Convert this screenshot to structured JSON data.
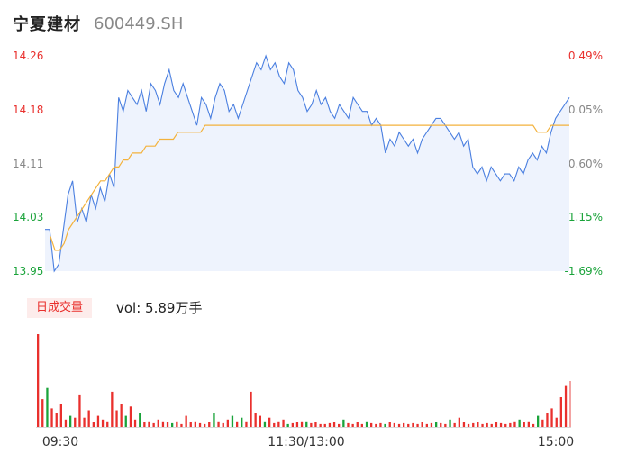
{
  "header": {
    "name": "宁夏建材",
    "code": "600449.SH"
  },
  "volume_panel": {
    "tag": "日成交量",
    "vol_text": "vol: 5.89万手"
  },
  "colors": {
    "up": "#e9302d",
    "down": "#1aa33a",
    "price_line": "#4a7fe0",
    "avg_line": "#f3b23c",
    "axis_text": "#888888"
  },
  "chart_data": [
    {
      "type": "line",
      "y_ticks": [
        "14.26",
        "14.18",
        "14.11",
        "14.03",
        "13.95"
      ],
      "y_ticks_right": [
        "0.49%",
        "-0.05%",
        "-0.60%",
        "-1.15%",
        "-1.69%"
      ],
      "ylim": [
        13.95,
        14.26
      ],
      "x_ticks": [
        "09:30",
        "11:30/13:00",
        "15:00"
      ],
      "series": [
        {
          "name": "price",
          "values": [
            14.01,
            14.01,
            13.95,
            13.96,
            14.01,
            14.06,
            14.08,
            14.02,
            14.04,
            14.02,
            14.06,
            14.04,
            14.07,
            14.05,
            14.09,
            14.07,
            14.2,
            14.18,
            14.21,
            14.2,
            14.19,
            14.21,
            14.18,
            14.22,
            14.21,
            14.19,
            14.22,
            14.24,
            14.21,
            14.2,
            14.22,
            14.2,
            14.18,
            14.16,
            14.2,
            14.19,
            14.17,
            14.2,
            14.22,
            14.21,
            14.18,
            14.19,
            14.17,
            14.19,
            14.21,
            14.23,
            14.25,
            14.24,
            14.26,
            14.24,
            14.25,
            14.23,
            14.22,
            14.25,
            14.24,
            14.21,
            14.2,
            14.18,
            14.19,
            14.21,
            14.19,
            14.2,
            14.18,
            14.17,
            14.19,
            14.18,
            14.17,
            14.2,
            14.19,
            14.18,
            14.18,
            14.16,
            14.17,
            14.16,
            14.12,
            14.14,
            14.13,
            14.15,
            14.14,
            14.13,
            14.14,
            14.12,
            14.14,
            14.15,
            14.16,
            14.17,
            14.17,
            14.16,
            14.15,
            14.14,
            14.15,
            14.13,
            14.14,
            14.1,
            14.09,
            14.1,
            14.08,
            14.1,
            14.09,
            14.08,
            14.09,
            14.09,
            14.08,
            14.1,
            14.09,
            14.11,
            14.12,
            14.11,
            14.13,
            14.12,
            14.15,
            14.17,
            14.18,
            14.19,
            14.2
          ]
        },
        {
          "name": "average",
          "values": [
            14.0,
            13.98,
            13.98,
            13.99,
            14.01,
            14.02,
            14.03,
            14.04,
            14.05,
            14.06,
            14.07,
            14.08,
            14.08,
            14.09,
            14.1,
            14.1,
            14.11,
            14.11,
            14.12,
            14.12,
            14.12,
            14.13,
            14.13,
            14.13,
            14.14,
            14.14,
            14.14,
            14.14,
            14.15,
            14.15,
            14.15,
            14.15,
            14.15,
            14.15,
            14.16,
            14.16,
            14.16,
            14.16,
            14.16,
            14.16,
            14.16,
            14.16,
            14.16,
            14.16,
            14.16,
            14.16,
            14.16,
            14.16,
            14.16,
            14.16,
            14.16,
            14.16,
            14.16,
            14.16,
            14.16,
            14.16,
            14.16,
            14.16,
            14.16,
            14.16,
            14.16,
            14.16,
            14.16,
            14.16,
            14.16,
            14.16,
            14.16,
            14.16,
            14.16,
            14.16,
            14.16,
            14.16,
            14.16,
            14.16,
            14.16,
            14.16,
            14.16,
            14.16,
            14.16,
            14.16,
            14.16,
            14.16,
            14.16,
            14.16,
            14.16,
            14.16,
            14.16,
            14.16,
            14.16,
            14.16,
            14.16,
            14.16,
            14.16,
            14.16,
            14.16,
            14.16,
            14.16,
            14.16,
            14.16,
            14.16,
            14.16,
            14.16,
            14.16,
            14.16,
            14.16,
            14.16,
            14.16,
            14.15,
            14.15,
            14.15,
            14.16,
            14.16,
            14.16,
            14.16,
            14.16
          ]
        }
      ]
    },
    {
      "type": "bar",
      "series": [
        {
          "name": "volume",
          "values": [
            100,
            30,
            42,
            20,
            15,
            25,
            8,
            12,
            10,
            35,
            10,
            18,
            5,
            12,
            8,
            6,
            38,
            18,
            25,
            12,
            22,
            8,
            15,
            5,
            6,
            4,
            8,
            6,
            5,
            4,
            6,
            3,
            12,
            5,
            6,
            4,
            3,
            5,
            15,
            6,
            4,
            8,
            12,
            6,
            10,
            6,
            38,
            15,
            12,
            6,
            10,
            4,
            6,
            8,
            3,
            4,
            5,
            6,
            6,
            4,
            5,
            3,
            3,
            4,
            5,
            3,
            8,
            4,
            3,
            5,
            3,
            6,
            4,
            3,
            4,
            3,
            5,
            4,
            3,
            4,
            3,
            4,
            3,
            5,
            3,
            4,
            5,
            4,
            3,
            8,
            4,
            10,
            5,
            3,
            4,
            5,
            3,
            4,
            3,
            5,
            4,
            3,
            4,
            6,
            8,
            5,
            6,
            3,
            12,
            8,
            15,
            20,
            10,
            32,
            45
          ],
          "up": [
            1,
            1,
            0,
            1,
            1,
            1,
            1,
            0,
            1,
            1,
            1,
            1,
            1,
            1,
            1,
            1,
            1,
            1,
            1,
            0,
            1,
            1,
            0,
            1,
            1,
            1,
            1,
            1,
            1,
            0,
            1,
            1,
            1,
            1,
            1,
            1,
            1,
            1,
            0,
            1,
            1,
            1,
            0,
            1,
            0,
            1,
            1,
            1,
            1,
            0,
            1,
            1,
            1,
            1,
            0,
            1,
            1,
            1,
            0,
            1,
            1,
            1,
            1,
            1,
            1,
            1,
            0,
            1,
            1,
            1,
            1,
            0,
            1,
            1,
            1,
            0,
            1,
            1,
            1,
            1,
            1,
            1,
            1,
            1,
            1,
            1,
            0,
            1,
            1,
            0,
            1,
            1,
            1,
            1,
            1,
            1,
            1,
            1,
            1,
            1,
            1,
            1,
            1,
            1,
            0,
            1,
            1,
            1,
            0,
            1,
            1,
            1,
            1,
            1,
            1
          ]
        }
      ]
    }
  ]
}
